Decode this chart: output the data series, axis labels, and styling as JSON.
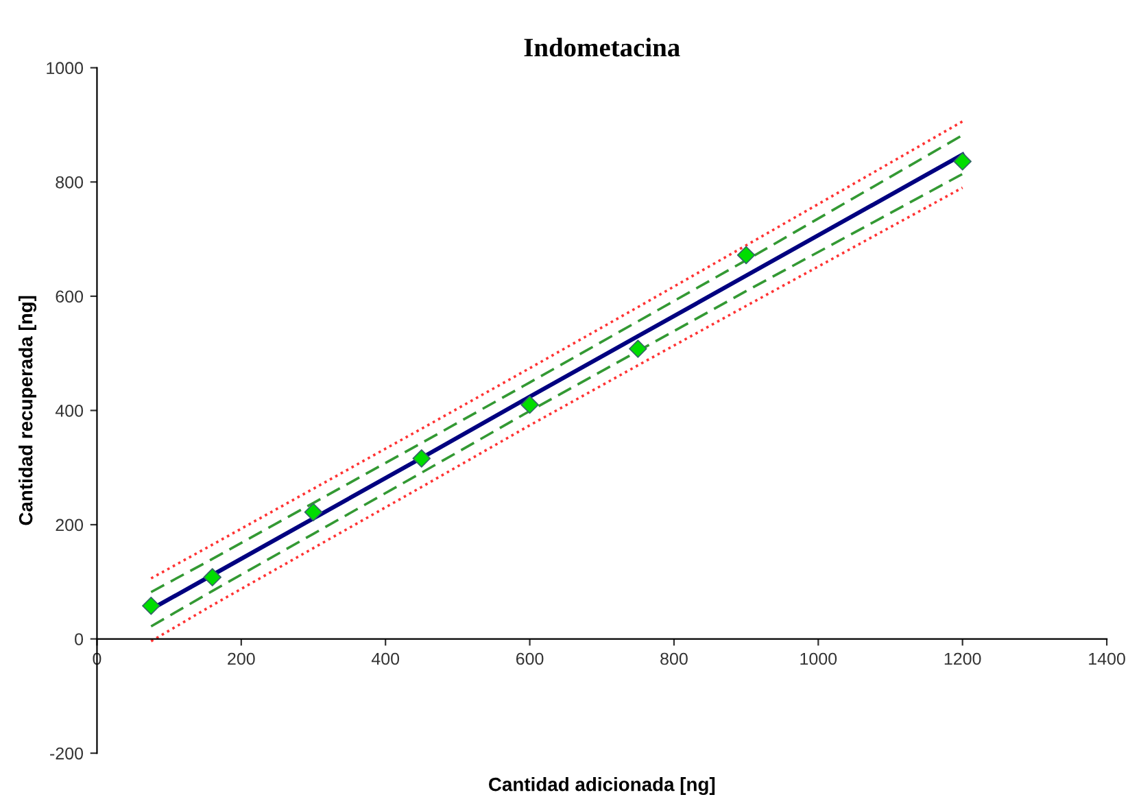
{
  "chart_data": {
    "type": "scatter",
    "title": "Indometacina",
    "xlabel": "Cantidad adicionada [ng]",
    "ylabel": "Cantidad recuperada [ng]",
    "xlim": [
      0,
      1400
    ],
    "xticks": [
      0,
      200,
      400,
      600,
      800,
      1000,
      1200,
      1400
    ],
    "ylim": [
      -200,
      1000
    ],
    "yticks": [
      -200,
      0,
      200,
      400,
      600,
      800,
      1000
    ],
    "grid": false,
    "legend": false,
    "x": [
      75,
      160,
      300,
      450,
      600,
      750,
      900,
      1200
    ],
    "series": [
      {
        "type": "line",
        "color": "#ff3333",
        "line_style": "dotted",
        "marker": "none",
        "values": [
          106,
          165,
          263,
          368,
          474,
          581,
          689,
          906
        ]
      },
      {
        "type": "line",
        "color": "#339933",
        "line_style": "dashed",
        "marker": "none",
        "values": [
          82,
          140,
          238,
          343,
          449,
          556,
          663,
          882
        ]
      },
      {
        "type": "line",
        "color": "#000080",
        "line_style": "solid",
        "marker": "none",
        "values": [
          52,
          112,
          211,
          317,
          424,
          530,
          636,
          848
        ]
      },
      {
        "type": "line",
        "color": "#339933",
        "line_style": "dashed",
        "marker": "none",
        "values": [
          22,
          84,
          184,
          291,
          399,
          504,
          609,
          814
        ]
      },
      {
        "type": "line",
        "color": "#ff3333",
        "line_style": "dotted",
        "marker": "none",
        "values": [
          -4,
          59,
          159,
          266,
          374,
          479,
          583,
          790
        ]
      },
      {
        "color": "#00dd00",
        "marker": "diamond",
        "values": [
          58,
          108,
          222,
          316,
          410,
          508,
          672,
          836
        ]
      }
    ]
  }
}
